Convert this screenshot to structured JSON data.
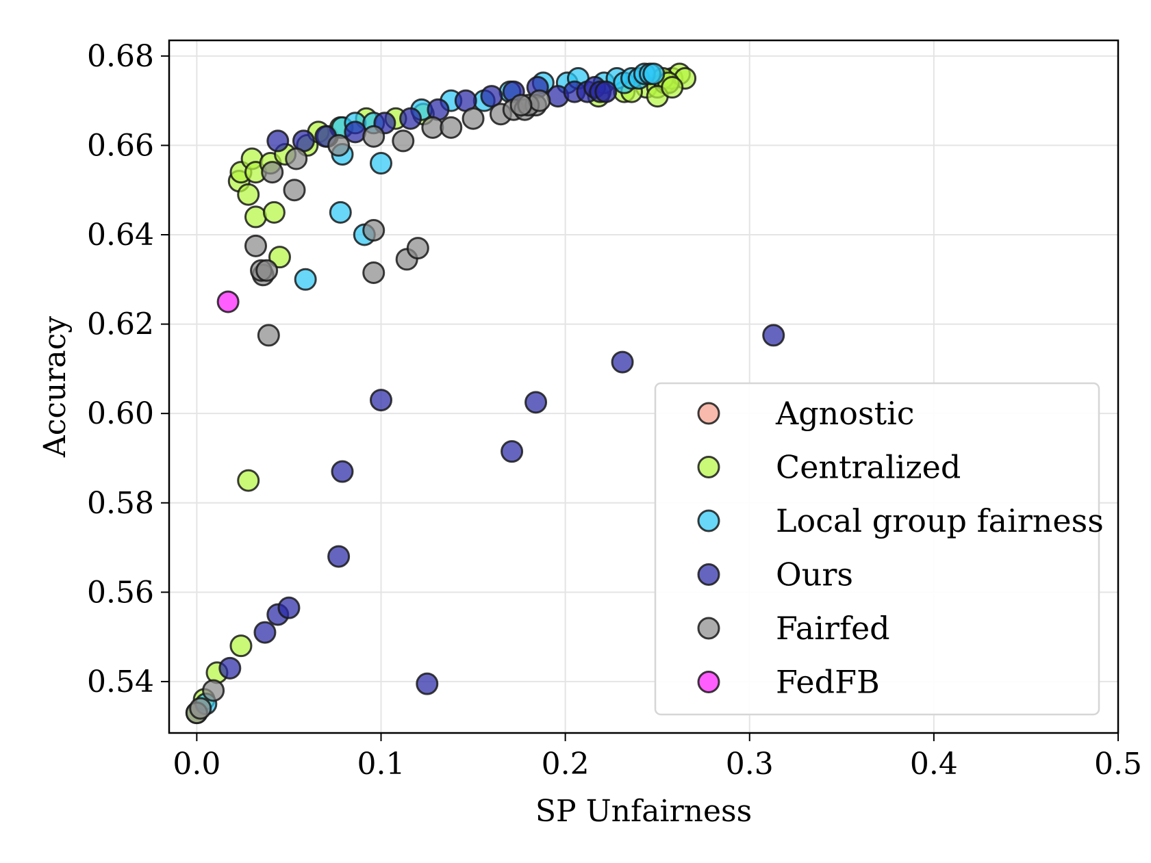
{
  "chart_data": {
    "type": "scatter",
    "title": "",
    "xlabel": "SP Unfairness",
    "ylabel": "Accuracy",
    "xlim": [
      -0.015,
      0.5
    ],
    "ylim": [
      0.5285,
      0.6835
    ],
    "xticks": [
      0.0,
      0.1,
      0.2,
      0.3,
      0.4,
      0.5
    ],
    "xtick_labels": [
      "0.0",
      "0.1",
      "0.2",
      "0.3",
      "0.4",
      "0.5"
    ],
    "yticks": [
      0.54,
      0.56,
      0.58,
      0.6,
      0.62,
      0.64,
      0.66,
      0.68
    ],
    "ytick_labels": [
      "0.54",
      "0.56",
      "0.58",
      "0.60",
      "0.62",
      "0.64",
      "0.66",
      "0.68"
    ],
    "grid": true,
    "legend_position": "lower-right",
    "series": [
      {
        "name": "Agnostic",
        "color": "#f4a08c",
        "points": []
      },
      {
        "name": "Centralized",
        "color": "#b6f542",
        "points": [
          [
            0.0,
            0.533
          ],
          [
            0.004,
            0.536
          ],
          [
            0.011,
            0.542
          ],
          [
            0.024,
            0.548
          ],
          [
            0.028,
            0.585
          ],
          [
            0.023,
            0.652
          ],
          [
            0.024,
            0.654
          ],
          [
            0.03,
            0.657
          ],
          [
            0.032,
            0.654
          ],
          [
            0.028,
            0.649
          ],
          [
            0.032,
            0.644
          ],
          [
            0.042,
            0.645
          ],
          [
            0.045,
            0.635
          ],
          [
            0.04,
            0.656
          ],
          [
            0.048,
            0.658
          ],
          [
            0.06,
            0.66
          ],
          [
            0.066,
            0.663
          ],
          [
            0.071,
            0.662
          ],
          [
            0.078,
            0.664
          ],
          [
            0.092,
            0.666
          ],
          [
            0.108,
            0.666
          ],
          [
            0.123,
            0.667
          ],
          [
            0.218,
            0.671
          ],
          [
            0.232,
            0.672
          ],
          [
            0.244,
            0.673
          ],
          [
            0.25,
            0.673
          ],
          [
            0.254,
            0.674
          ],
          [
            0.258,
            0.675
          ],
          [
            0.262,
            0.676
          ],
          [
            0.265,
            0.675
          ],
          [
            0.253,
            0.675
          ],
          [
            0.256,
            0.674
          ],
          [
            0.25,
            0.671
          ],
          [
            0.258,
            0.673
          ],
          [
            0.236,
            0.672
          ]
        ]
      },
      {
        "name": "Local group fairness",
        "color": "#2ec8f5",
        "points": [
          [
            0.005,
            0.535
          ],
          [
            0.059,
            0.63
          ],
          [
            0.078,
            0.645
          ],
          [
            0.091,
            0.64
          ],
          [
            0.079,
            0.658
          ],
          [
            0.1,
            0.656
          ],
          [
            0.079,
            0.664
          ],
          [
            0.086,
            0.665
          ],
          [
            0.096,
            0.665
          ],
          [
            0.122,
            0.668
          ],
          [
            0.138,
            0.67
          ],
          [
            0.156,
            0.67
          ],
          [
            0.17,
            0.672
          ],
          [
            0.188,
            0.674
          ],
          [
            0.201,
            0.674
          ],
          [
            0.207,
            0.675
          ],
          [
            0.221,
            0.674
          ],
          [
            0.228,
            0.675
          ],
          [
            0.232,
            0.674
          ],
          [
            0.236,
            0.675
          ],
          [
            0.24,
            0.675
          ],
          [
            0.243,
            0.676
          ],
          [
            0.246,
            0.676
          ],
          [
            0.248,
            0.676
          ]
        ]
      },
      {
        "name": "Ours",
        "color": "#2a2aa8",
        "points": [
          [
            0.125,
            0.5395
          ],
          [
            0.018,
            0.543
          ],
          [
            0.037,
            0.551
          ],
          [
            0.044,
            0.555
          ],
          [
            0.05,
            0.5565
          ],
          [
            0.077,
            0.568
          ],
          [
            0.079,
            0.587
          ],
          [
            0.1,
            0.603
          ],
          [
            0.171,
            0.5915
          ],
          [
            0.184,
            0.6025
          ],
          [
            0.231,
            0.6115
          ],
          [
            0.313,
            0.6175
          ],
          [
            0.044,
            0.661
          ],
          [
            0.058,
            0.661
          ],
          [
            0.07,
            0.662
          ],
          [
            0.086,
            0.663
          ],
          [
            0.102,
            0.665
          ],
          [
            0.116,
            0.666
          ],
          [
            0.131,
            0.668
          ],
          [
            0.146,
            0.67
          ],
          [
            0.16,
            0.671
          ],
          [
            0.172,
            0.672
          ],
          [
            0.185,
            0.673
          ],
          [
            0.196,
            0.671
          ],
          [
            0.205,
            0.672
          ],
          [
            0.212,
            0.672
          ],
          [
            0.216,
            0.673
          ],
          [
            0.219,
            0.672
          ],
          [
            0.222,
            0.672
          ]
        ]
      },
      {
        "name": "Fairfed",
        "color": "#8c8c8c",
        "points": [
          [
            0.0,
            0.533
          ],
          [
            0.002,
            0.534
          ],
          [
            0.009,
            0.538
          ],
          [
            0.039,
            0.6175
          ],
          [
            0.036,
            0.631
          ],
          [
            0.035,
            0.632
          ],
          [
            0.038,
            0.632
          ],
          [
            0.032,
            0.6375
          ],
          [
            0.096,
            0.6315
          ],
          [
            0.114,
            0.6345
          ],
          [
            0.12,
            0.637
          ],
          [
            0.096,
            0.641
          ],
          [
            0.053,
            0.65
          ],
          [
            0.041,
            0.654
          ],
          [
            0.054,
            0.657
          ],
          [
            0.077,
            0.66
          ],
          [
            0.096,
            0.662
          ],
          [
            0.112,
            0.661
          ],
          [
            0.128,
            0.664
          ],
          [
            0.138,
            0.664
          ],
          [
            0.15,
            0.666
          ],
          [
            0.165,
            0.667
          ],
          [
            0.172,
            0.668
          ],
          [
            0.178,
            0.668
          ],
          [
            0.184,
            0.669
          ],
          [
            0.18,
            0.669
          ],
          [
            0.186,
            0.67
          ],
          [
            0.176,
            0.669
          ]
        ]
      },
      {
        "name": "FedFB",
        "color": "#ff20ff",
        "points": [
          [
            0.017,
            0.625
          ]
        ]
      }
    ]
  }
}
